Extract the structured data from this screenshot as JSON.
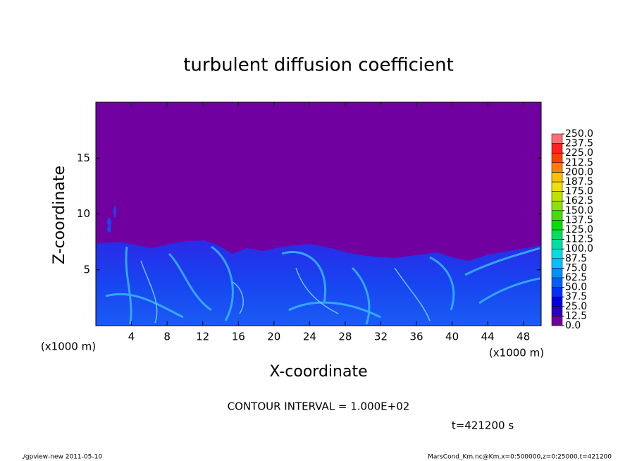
{
  "chart_data": {
    "type": "contour",
    "title": "turbulent diffusion coefficient",
    "xlabel": "X-coordinate",
    "ylabel": "Z-coordinate",
    "axis_unit": "(x1000 m)",
    "xlim": [
      0,
      50
    ],
    "ylim": [
      0,
      20
    ],
    "xticks": [
      4,
      8,
      12,
      16,
      20,
      24,
      28,
      32,
      36,
      40,
      44,
      48
    ],
    "yticks": [
      5,
      10,
      15
    ],
    "colorbar": {
      "levels": [
        {
          "value": 0,
          "label": "0.0"
        },
        {
          "value": 12.5,
          "label": "12.5"
        },
        {
          "value": 25,
          "label": "25.0"
        },
        {
          "value": 37.5,
          "label": "37.5"
        },
        {
          "value": 50,
          "label": "50.0"
        },
        {
          "value": 62.5,
          "label": "62.5"
        },
        {
          "value": 75,
          "label": "75.0"
        },
        {
          "value": 87.5,
          "label": "87.5"
        },
        {
          "value": 100,
          "label": "100.0"
        },
        {
          "value": 112.5,
          "label": "112.5"
        },
        {
          "value": 125,
          "label": "125.0"
        },
        {
          "value": 137.5,
          "label": "137.5"
        },
        {
          "value": 150,
          "label": "150.0"
        },
        {
          "value": 162.5,
          "label": "162.5"
        },
        {
          "value": 175,
          "label": "175.0"
        },
        {
          "value": 187.5,
          "label": "187.5"
        },
        {
          "value": 200,
          "label": "200.0"
        },
        {
          "value": 212.5,
          "label": "212.5"
        },
        {
          "value": 225,
          "label": "225.0"
        },
        {
          "value": 237.5,
          "label": "237.5"
        },
        {
          "value": 250,
          "label": "250.0"
        }
      ],
      "colors": [
        "#7000a0",
        "#2800c0",
        "#0000e0",
        "#0030ff",
        "#0060ff",
        "#0090ff",
        "#00c0ff",
        "#00e0e0",
        "#00e0a0",
        "#00e060",
        "#00e000",
        "#40e000",
        "#90e000",
        "#c0e000",
        "#f0e000",
        "#ffc000",
        "#ff8000",
        "#ff4000",
        "#ff2020",
        "#ff7070"
      ]
    },
    "contour_interval": "CONTOUR INTERVAL = 1.000E+02",
    "time_label": "t=421200 s",
    "footer_left": "./gpview-new   2011-05-10",
    "footer_right": "MarsCond_Km.nc@Km,x=0:500000,z=0:25000,t=421200"
  }
}
